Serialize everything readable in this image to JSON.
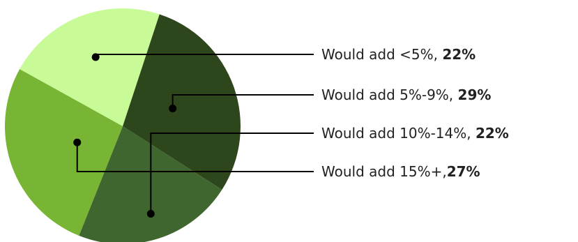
{
  "chart_data": {
    "type": "pie",
    "title": "",
    "slices": [
      {
        "label": "Would add <5%",
        "separator": ", ",
        "value": 22,
        "value_text": "22%",
        "color": "#c8fb98"
      },
      {
        "label": "Would add 5%-9%",
        "separator": ", ",
        "value": 29,
        "value_text": "29%",
        "color": "#2d461b"
      },
      {
        "label": "Would add 10%-14%",
        "separator": ", ",
        "value": 22,
        "value_text": "22%",
        "color": "#406630"
      },
      {
        "label": "Would add 15%+",
        "separator": ",",
        "value": 27,
        "value_text": "27%",
        "color": "#78b534"
      }
    ],
    "legend_placement": "right, with leader lines to slices"
  }
}
